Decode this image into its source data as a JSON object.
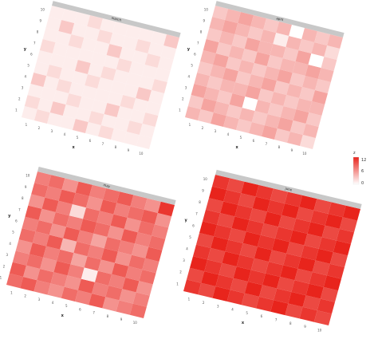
{
  "chart_data": {
    "type": "heatmap",
    "layout": "facet 2x2, tilted 3D perspective",
    "x_label": "x",
    "y_label": "y",
    "x_ticks": [
      "1",
      "2",
      "3",
      "4",
      "5",
      "6",
      "7",
      "8",
      "9",
      "10"
    ],
    "y_ticks": [
      "1",
      "2",
      "3",
      "4",
      "5",
      "6",
      "7",
      "8",
      "9",
      "10"
    ],
    "color_low": "#ffffff",
    "color_high": "#e8241c",
    "value_range": [
      0,
      12
    ],
    "legend": {
      "title": "z",
      "ticks": [
        "12",
        "6",
        "0"
      ],
      "placement": "right"
    },
    "panels": [
      {
        "name": "march",
        "rows": [
          [
            1,
            2,
            1,
            1,
            3,
            1,
            2,
            1,
            1,
            1
          ],
          [
            2,
            1,
            3,
            1,
            1,
            2,
            1,
            1,
            2,
            1
          ],
          [
            1,
            1,
            1,
            2,
            1,
            1,
            3,
            1,
            1,
            2
          ],
          [
            3,
            1,
            2,
            1,
            1,
            1,
            1,
            2,
            1,
            1
          ],
          [
            1,
            2,
            1,
            1,
            2,
            1,
            1,
            1,
            3,
            1
          ],
          [
            1,
            1,
            1,
            3,
            1,
            2,
            1,
            1,
            1,
            2
          ],
          [
            2,
            1,
            1,
            1,
            1,
            1,
            2,
            1,
            1,
            1
          ],
          [
            1,
            1,
            2,
            1,
            1,
            3,
            1,
            1,
            2,
            1
          ],
          [
            1,
            3,
            1,
            1,
            2,
            1,
            1,
            2,
            1,
            1
          ],
          [
            1,
            1,
            1,
            2,
            1,
            1,
            1,
            1,
            1,
            3
          ]
        ]
      },
      {
        "name": "april",
        "rows": [
          [
            4,
            3,
            5,
            4,
            3,
            4,
            5,
            3,
            4,
            2
          ],
          [
            3,
            5,
            4,
            3,
            4,
            3,
            4,
            5,
            3,
            4
          ],
          [
            5,
            4,
            3,
            5,
            0,
            4,
            3,
            4,
            5,
            3
          ],
          [
            4,
            3,
            4,
            4,
            5,
            3,
            4,
            3,
            4,
            4
          ],
          [
            3,
            4,
            5,
            3,
            4,
            5,
            3,
            4,
            3,
            5
          ],
          [
            4,
            5,
            3,
            4,
            3,
            4,
            5,
            3,
            4,
            3
          ],
          [
            5,
            3,
            4,
            3,
            5,
            3,
            4,
            4,
            5,
            4
          ],
          [
            3,
            4,
            3,
            5,
            4,
            4,
            3,
            5,
            0,
            3
          ],
          [
            4,
            5,
            4,
            3,
            4,
            1,
            4,
            3,
            4,
            2
          ],
          [
            3,
            4,
            5,
            4,
            3,
            4,
            0,
            4,
            3,
            4
          ]
        ]
      },
      {
        "name": "may",
        "rows": [
          [
            8,
            9,
            7,
            6,
            8,
            7,
            9,
            6,
            7,
            8
          ],
          [
            9,
            6,
            8,
            7,
            6,
            9,
            7,
            8,
            6,
            7
          ],
          [
            7,
            8,
            6,
            9,
            7,
            1,
            8,
            7,
            9,
            6
          ],
          [
            6,
            9,
            7,
            8,
            5,
            8,
            6,
            9,
            7,
            8
          ],
          [
            8,
            7,
            9,
            4,
            8,
            7,
            9,
            6,
            8,
            7
          ],
          [
            7,
            8,
            6,
            9,
            7,
            5,
            8,
            7,
            6,
            9
          ],
          [
            9,
            6,
            8,
            7,
            9,
            8,
            6,
            9,
            7,
            8
          ],
          [
            6,
            9,
            7,
            2,
            8,
            7,
            9,
            6,
            8,
            7
          ],
          [
            8,
            7,
            9,
            8,
            6,
            9,
            7,
            8,
            9,
            6
          ],
          [
            7,
            8,
            6,
            9,
            7,
            8,
            9,
            7,
            6,
            11
          ]
        ]
      },
      {
        "name": "june",
        "rows": [
          [
            11,
            10,
            12,
            11,
            10,
            11,
            12,
            10,
            11,
            10
          ],
          [
            10,
            12,
            11,
            10,
            12,
            10,
            11,
            12,
            10,
            11
          ],
          [
            12,
            11,
            10,
            12,
            11,
            12,
            10,
            11,
            12,
            10
          ],
          [
            11,
            10,
            12,
            11,
            10,
            11,
            12,
            10,
            11,
            12
          ],
          [
            10,
            12,
            11,
            10,
            12,
            10,
            11,
            12,
            10,
            11
          ],
          [
            12,
            11,
            10,
            12,
            11,
            12,
            10,
            11,
            12,
            10
          ],
          [
            11,
            10,
            12,
            11,
            10,
            11,
            12,
            10,
            11,
            12
          ],
          [
            10,
            12,
            11,
            10,
            12,
            10,
            11,
            12,
            10,
            11
          ],
          [
            12,
            11,
            10,
            12,
            11,
            12,
            10,
            11,
            12,
            10
          ],
          [
            11,
            10,
            12,
            11,
            10,
            11,
            12,
            10,
            11,
            12
          ]
        ]
      }
    ]
  }
}
